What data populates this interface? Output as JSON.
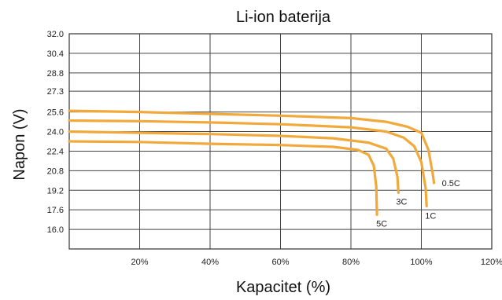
{
  "chart_data": {
    "type": "line",
    "title": "Li-ion baterija",
    "xlabel": "Kapacitet (%)",
    "ylabel": "Napon (V)",
    "xlim": [
      0,
      120
    ],
    "ylim": [
      14.4,
      32.0
    ],
    "grid": true,
    "line_color": "#f2a93b",
    "x_ticks": [
      20,
      40,
      60,
      80,
      100,
      120
    ],
    "x_tick_labels": [
      "20%",
      "40%",
      "60%",
      "80%",
      "100%",
      "120%"
    ],
    "y_ticks": [
      32.0,
      30.4,
      28.8,
      27.3,
      25.6,
      24.0,
      22.4,
      20.8,
      19.2,
      17.6,
      16.0
    ],
    "y_tick_labels": [
      "32.0",
      "30.4",
      "28.8",
      "27.3",
      "25.6",
      "24.0",
      "22.4",
      "20.8",
      "19.2",
      "17.6",
      "16.0"
    ],
    "series": [
      {
        "name": "0.5C",
        "x": [
          0,
          20,
          40,
          60,
          80,
          90,
          96,
          100,
          102,
          103.2,
          103.6
        ],
        "y": [
          25.7,
          25.6,
          25.45,
          25.3,
          25.1,
          24.8,
          24.4,
          23.9,
          22.5,
          20.6,
          19.8
        ]
      },
      {
        "name": "1C",
        "x": [
          0,
          20,
          40,
          60,
          80,
          90,
          95,
          98,
          100,
          101.2,
          101.5
        ],
        "y": [
          24.9,
          24.85,
          24.75,
          24.6,
          24.35,
          24.0,
          23.5,
          22.8,
          21.5,
          19.4,
          17.9
        ]
      },
      {
        "name": "3C",
        "x": [
          0,
          20,
          40,
          60,
          75,
          85,
          90,
          92,
          93.2,
          93.5
        ],
        "y": [
          24.0,
          23.9,
          23.8,
          23.65,
          23.45,
          23.1,
          22.6,
          21.8,
          20.3,
          19.0
        ]
      },
      {
        "name": "5C",
        "x": [
          0,
          20,
          40,
          60,
          75,
          82,
          85,
          86.5,
          87.2,
          87.4
        ],
        "y": [
          23.2,
          23.15,
          23.0,
          22.9,
          22.75,
          22.5,
          22.1,
          21.2,
          19.5,
          17.2
        ]
      }
    ]
  }
}
